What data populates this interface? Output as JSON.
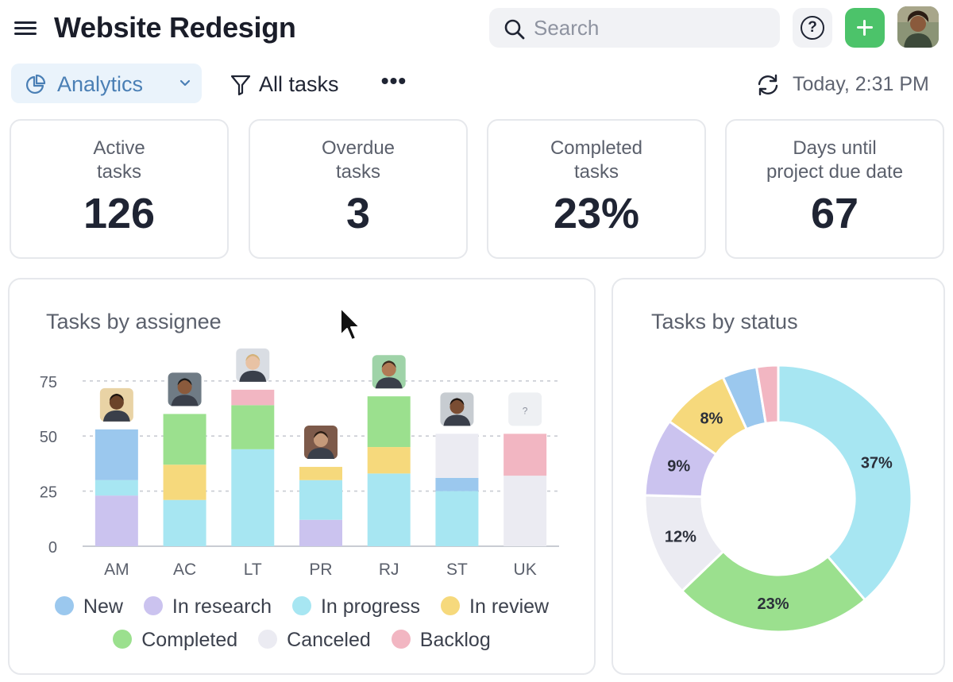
{
  "header": {
    "title": "Website Redesign",
    "search_placeholder": "Search",
    "help_label": "?",
    "add_label": "+"
  },
  "toolbar": {
    "view_label": "Analytics",
    "filter_label": "All tasks",
    "more_label": "•••",
    "refresh_label": "Today, 2:31 PM"
  },
  "stats": [
    {
      "label_line1": "Active",
      "label_line2": "tasks",
      "value": "126"
    },
    {
      "label_line1": "Overdue",
      "label_line2": "tasks",
      "value": "3"
    },
    {
      "label_line1": "Completed",
      "label_line2": "tasks",
      "value": "23%"
    },
    {
      "label_line1": "Days until",
      "label_line2": "project due date",
      "value": "67"
    }
  ],
  "colors": {
    "New": "#9bc8ee",
    "In research": "#cbc3ef",
    "In progress": "#a7e6f2",
    "In review": "#f6d97c",
    "Completed": "#9be08e",
    "Canceled": "#ebebf2",
    "Backlog": "#f2b6c2"
  },
  "chart_data": [
    {
      "type": "bar",
      "stacked": true,
      "title": "Tasks by assignee",
      "categories": [
        "AM",
        "AC",
        "LT",
        "PR",
        "RJ",
        "ST",
        "UK"
      ],
      "yticks": [
        0,
        25,
        50,
        75
      ],
      "ylim": [
        0,
        85
      ],
      "grid": true,
      "legend_position": "bottom",
      "series": [
        {
          "name": "New",
          "values": [
            23,
            0,
            0,
            0,
            0,
            6,
            0
          ]
        },
        {
          "name": "In research",
          "values": [
            23,
            0,
            0,
            12,
            0,
            0,
            0
          ]
        },
        {
          "name": "In progress",
          "values": [
            7,
            21,
            44,
            18,
            33,
            25,
            0
          ]
        },
        {
          "name": "In review",
          "values": [
            0,
            16,
            0,
            6,
            12,
            0,
            0
          ]
        },
        {
          "name": "Completed",
          "values": [
            0,
            23,
            20,
            0,
            23,
            0,
            0
          ]
        },
        {
          "name": "Canceled",
          "values": [
            0,
            0,
            0,
            0,
            0,
            20,
            32
          ]
        },
        {
          "name": "Backlog",
          "values": [
            0,
            0,
            7,
            0,
            0,
            0,
            19
          ]
        }
      ],
      "series_order": [
        "In research",
        "In progress",
        "New",
        "In review",
        "Completed",
        "Canceled",
        "Backlog"
      ],
      "unknown_assignee_label": "?"
    },
    {
      "type": "pie",
      "donut": true,
      "title": "Tasks by status",
      "slices": [
        {
          "name": "In progress",
          "value": 37,
          "label": "37%"
        },
        {
          "name": "Completed",
          "value": 23,
          "label": "23%"
        },
        {
          "name": "Canceled",
          "value": 12,
          "label": "12%"
        },
        {
          "name": "In research",
          "value": 9,
          "label": "9%"
        },
        {
          "name": "In review",
          "value": 8,
          "label": "8%"
        },
        {
          "name": "New",
          "value": 4,
          "label": ""
        },
        {
          "name": "Backlog",
          "value": 2.5,
          "label": ""
        }
      ]
    }
  ],
  "legend": {
    "row1": [
      "New",
      "In research",
      "In progress",
      "In review"
    ],
    "row2": [
      "Completed",
      "Canceled",
      "Backlog"
    ]
  }
}
